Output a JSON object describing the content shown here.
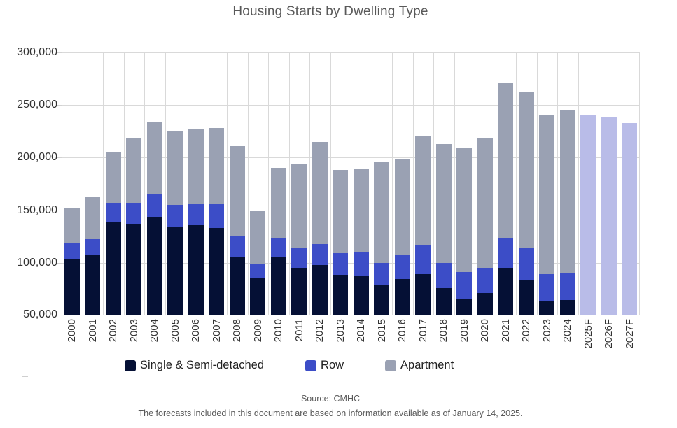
{
  "chart_data": {
    "type": "bar",
    "stacked": true,
    "title": "Housing Starts by Dwelling Type",
    "categories": [
      "2000",
      "2001",
      "2002",
      "2003",
      "2004",
      "2005",
      "2006",
      "2007",
      "2008",
      "2009",
      "2010",
      "2011",
      "2012",
      "2013",
      "2014",
      "2015",
      "2016",
      "2017",
      "2018",
      "2019",
      "2020",
      "2021",
      "2022",
      "2023",
      "2024",
      "2025F",
      "2026F",
      "2027F"
    ],
    "series": [
      {
        "name": "Single & Semi-detached",
        "color": "#051035",
        "values": [
          104000,
          107000,
          139000,
          137000,
          143000,
          134000,
          135500,
          133000,
          105000,
          86000,
          105000,
          95000,
          98000,
          88500,
          88000,
          79000,
          84500,
          89000,
          76000,
          65000,
          71000,
          95000,
          84000,
          63500,
          64500
        ]
      },
      {
        "name": "Row",
        "color": "#3c4dc7",
        "values": [
          15000,
          15500,
          18000,
          20000,
          23000,
          21000,
          21000,
          23000,
          21000,
          13000,
          19000,
          19000,
          20000,
          20500,
          22000,
          21000,
          22500,
          28000,
          24000,
          26000,
          24000,
          29000,
          30000,
          25500,
          25500
        ]
      },
      {
        "name": "Apartment",
        "color": "#9aa1b3",
        "values": [
          33000,
          40500,
          48000,
          61500,
          67500,
          70500,
          71000,
          72500,
          85000,
          50000,
          66000,
          80000,
          97000,
          79000,
          79500,
          95500,
          91000,
          103000,
          113000,
          118000,
          123000,
          147000,
          148000,
          151000,
          155500
        ]
      }
    ],
    "forecast": {
      "categories": [
        "2025F",
        "2026F",
        "2027F"
      ],
      "totals": [
        241000,
        239000,
        233000
      ],
      "color": "#b9bce8"
    },
    "ylim": [
      50000,
      300000
    ],
    "ytick_interval": 50000,
    "ytick_labels": [
      "50,000",
      "100,000",
      "150,000",
      "200,000",
      "250,000",
      "300,000"
    ],
    "grid": true,
    "legend_position": "bottom"
  },
  "footer": {
    "source": "Source: CMHC",
    "note": "The forecasts included in this document are based on information available as of January 14, 2025."
  }
}
